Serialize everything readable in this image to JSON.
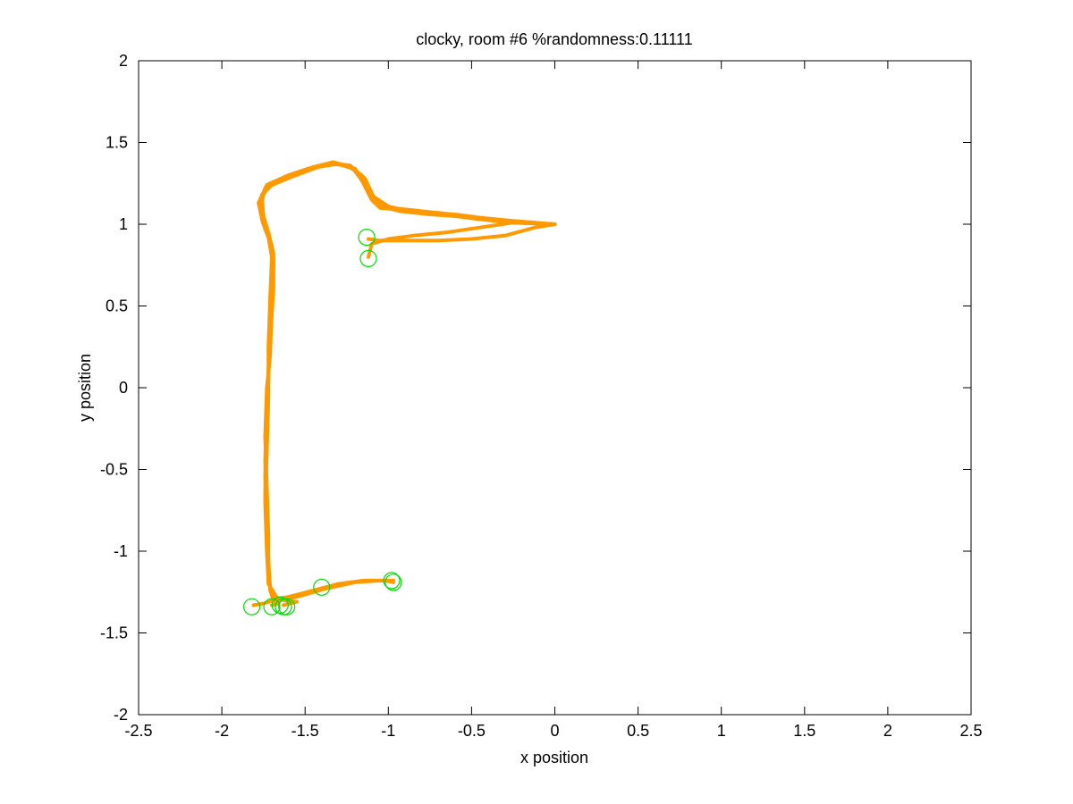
{
  "chart_data": {
    "type": "line",
    "title": "clocky, room #6 %randomness:0.11111",
    "xlabel": "x position",
    "ylabel": "y position",
    "xlim": [
      -2.5,
      2.5
    ],
    "ylim": [
      -2,
      2
    ],
    "xticks": [
      "-2.5",
      "-2",
      "-1.5",
      "-1",
      "-0.5",
      "0",
      "0.5",
      "1",
      "1.5",
      "2",
      "2.5"
    ],
    "yticks": [
      "-2",
      "-1.5",
      "-1",
      "-0.5",
      "0",
      "0.5",
      "1",
      "1.5",
      "2"
    ],
    "grid": false,
    "legend": "none",
    "series": [
      {
        "color": "#ff9900",
        "points": [
          [
            0.0,
            1.0
          ],
          [
            -0.25,
            1.01
          ],
          [
            -0.45,
            1.04
          ],
          [
            -0.6,
            1.06
          ],
          [
            -0.75,
            1.07
          ],
          [
            -0.95,
            1.09
          ],
          [
            -1.05,
            1.1
          ],
          [
            -1.1,
            1.15
          ],
          [
            -1.15,
            1.25
          ],
          [
            -1.2,
            1.34
          ],
          [
            -1.3,
            1.37
          ],
          [
            -1.42,
            1.35
          ],
          [
            -1.58,
            1.29
          ],
          [
            -1.7,
            1.24
          ],
          [
            -1.76,
            1.18
          ],
          [
            -1.77,
            1.08
          ],
          [
            -1.74,
            0.97
          ],
          [
            -1.7,
            0.87
          ],
          [
            -1.69,
            0.75
          ],
          [
            -1.7,
            0.5
          ],
          [
            -1.71,
            0.2
          ],
          [
            -1.73,
            0.0
          ],
          [
            -1.74,
            -0.3
          ],
          [
            -1.73,
            -0.6
          ],
          [
            -1.72,
            -0.9
          ],
          [
            -1.72,
            -1.1
          ],
          [
            -1.71,
            -1.22
          ],
          [
            -1.68,
            -1.29
          ],
          [
            -1.6,
            -1.28
          ],
          [
            -1.45,
            -1.24
          ],
          [
            -1.3,
            -1.2
          ],
          [
            -1.15,
            -1.18
          ],
          [
            -1.02,
            -1.18
          ],
          [
            -0.97,
            -1.19
          ]
        ]
      },
      {
        "color": "#ff9900",
        "points": [
          [
            0.0,
            1.0
          ],
          [
            -0.25,
            1.01
          ],
          [
            -0.45,
            1.04
          ],
          [
            -0.62,
            1.06
          ],
          [
            -0.8,
            1.08
          ],
          [
            -0.98,
            1.1
          ],
          [
            -1.07,
            1.13
          ],
          [
            -1.12,
            1.2
          ],
          [
            -1.17,
            1.29
          ],
          [
            -1.23,
            1.36
          ],
          [
            -1.34,
            1.37
          ],
          [
            -1.46,
            1.34
          ],
          [
            -1.6,
            1.29
          ],
          [
            -1.72,
            1.23
          ],
          [
            -1.77,
            1.15
          ],
          [
            -1.76,
            1.03
          ],
          [
            -1.72,
            0.92
          ],
          [
            -1.7,
            0.8
          ],
          [
            -1.71,
            0.55
          ],
          [
            -1.72,
            0.25
          ],
          [
            -1.72,
            -0.05
          ],
          [
            -1.73,
            -0.4
          ],
          [
            -1.74,
            -0.7
          ],
          [
            -1.73,
            -1.0
          ],
          [
            -1.72,
            -1.2
          ],
          [
            -1.66,
            -1.3
          ],
          [
            -1.55,
            -1.28
          ],
          [
            -1.38,
            -1.23
          ],
          [
            -1.2,
            -1.19
          ],
          [
            -1.05,
            -1.18
          ],
          [
            -0.97,
            -1.18
          ]
        ]
      },
      {
        "color": "#ff9900",
        "points": [
          [
            0.0,
            1.0
          ],
          [
            -0.22,
            1.01
          ],
          [
            -0.4,
            1.03
          ],
          [
            -0.55,
            1.05
          ],
          [
            -0.7,
            1.07
          ],
          [
            -0.88,
            1.08
          ],
          [
            -1.0,
            1.11
          ],
          [
            -1.09,
            1.17
          ],
          [
            -1.14,
            1.28
          ],
          [
            -1.22,
            1.35
          ],
          [
            -1.33,
            1.38
          ],
          [
            -1.45,
            1.35
          ],
          [
            -1.6,
            1.3
          ],
          [
            -1.73,
            1.24
          ],
          [
            -1.78,
            1.13
          ],
          [
            -1.75,
            1.0
          ],
          [
            -1.71,
            0.9
          ],
          [
            -1.69,
            0.78
          ],
          [
            -1.7,
            0.45
          ],
          [
            -1.72,
            0.1
          ],
          [
            -1.73,
            -0.2
          ],
          [
            -1.74,
            -0.55
          ],
          [
            -1.73,
            -0.85
          ],
          [
            -1.72,
            -1.15
          ],
          [
            -1.7,
            -1.27
          ],
          [
            -1.63,
            -1.3
          ],
          [
            -1.55,
            -1.31
          ],
          [
            -1.63,
            -1.33
          ]
        ]
      },
      {
        "color": "#ff9900",
        "points": [
          [
            0.0,
            1.0
          ],
          [
            -0.25,
            1.02
          ],
          [
            -0.45,
            1.04
          ],
          [
            -0.6,
            1.05
          ],
          [
            -0.78,
            1.07
          ],
          [
            -0.96,
            1.09
          ],
          [
            -1.06,
            1.12
          ],
          [
            -1.11,
            1.19
          ],
          [
            -1.16,
            1.27
          ],
          [
            -1.21,
            1.34
          ],
          [
            -1.31,
            1.37
          ],
          [
            -1.44,
            1.35
          ],
          [
            -1.58,
            1.3
          ],
          [
            -1.71,
            1.25
          ],
          [
            -1.76,
            1.17
          ],
          [
            -1.75,
            1.05
          ],
          [
            -1.72,
            0.95
          ],
          [
            -1.69,
            0.82
          ],
          [
            -1.69,
            0.6
          ],
          [
            -1.71,
            0.3
          ],
          [
            -1.73,
            -0.1
          ],
          [
            -1.74,
            -0.45
          ],
          [
            -1.73,
            -0.75
          ],
          [
            -1.72,
            -1.05
          ],
          [
            -1.71,
            -1.24
          ],
          [
            -1.69,
            -1.3
          ],
          [
            -1.75,
            -1.32
          ],
          [
            -1.81,
            -1.33
          ]
        ]
      },
      {
        "color": "#ff9900",
        "points": [
          [
            0.0,
            1.0
          ],
          [
            -0.25,
            1.01
          ],
          [
            -0.45,
            1.03
          ],
          [
            -0.6,
            1.05
          ],
          [
            -0.75,
            1.06
          ],
          [
            -0.93,
            1.08
          ],
          [
            -1.04,
            1.11
          ],
          [
            -1.1,
            1.18
          ],
          [
            -1.16,
            1.3
          ],
          [
            -1.25,
            1.36
          ],
          [
            -1.36,
            1.37
          ],
          [
            -1.48,
            1.34
          ],
          [
            -1.62,
            1.29
          ],
          [
            -1.74,
            1.22
          ],
          [
            -1.77,
            1.1
          ],
          [
            -1.73,
            0.96
          ],
          [
            -1.7,
            0.85
          ],
          [
            -1.7,
            0.65
          ],
          [
            -1.71,
            0.35
          ],
          [
            -1.72,
            0.05
          ],
          [
            -1.73,
            -0.3
          ],
          [
            -1.74,
            -0.65
          ],
          [
            -1.73,
            -0.95
          ],
          [
            -1.72,
            -1.18
          ],
          [
            -1.69,
            -1.3
          ],
          [
            -1.66,
            -1.32
          ],
          [
            -1.7,
            -1.33
          ]
        ]
      },
      {
        "color": "#ff9900",
        "points": [
          [
            0.0,
            1.0
          ],
          [
            -0.12,
            0.98
          ],
          [
            -0.3,
            0.93
          ],
          [
            -0.5,
            0.91
          ],
          [
            -0.7,
            0.9
          ],
          [
            -0.9,
            0.9
          ],
          [
            -1.05,
            0.9
          ],
          [
            -1.12,
            0.91
          ]
        ]
      },
      {
        "color": "#ff9900",
        "points": [
          [
            -0.25,
            1.01
          ],
          [
            -0.45,
            0.98
          ],
          [
            -0.65,
            0.95
          ],
          [
            -0.85,
            0.93
          ],
          [
            -1.0,
            0.91
          ],
          [
            -1.1,
            0.88
          ],
          [
            -1.12,
            0.8
          ]
        ]
      }
    ],
    "markers": {
      "color": "#00dd00",
      "shape": "circle-open",
      "points": [
        [
          -1.13,
          0.92
        ],
        [
          -1.12,
          0.79
        ],
        [
          -0.98,
          -1.18
        ],
        [
          -0.97,
          -1.19
        ],
        [
          -1.4,
          -1.22
        ],
        [
          -1.82,
          -1.34
        ],
        [
          -1.7,
          -1.34
        ],
        [
          -1.65,
          -1.33
        ],
        [
          -1.63,
          -1.34
        ],
        [
          -1.61,
          -1.34
        ]
      ]
    }
  }
}
